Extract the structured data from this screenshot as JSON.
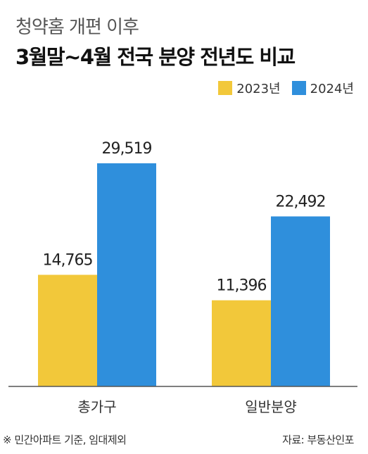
{
  "header": {
    "subtitle": "청약홈 개편 이후",
    "title": "3월말~4월 전국 분양 전년도 비교"
  },
  "colors": {
    "series_2023": "#f2c83a",
    "series_2024": "#2f8fdc",
    "axis": "#555555"
  },
  "chart_data": {
    "type": "bar",
    "categories": [
      "총가구",
      "일반분양"
    ],
    "series": [
      {
        "name": "2023년",
        "values": [
          14765,
          11396
        ],
        "labels": [
          "14,765",
          "11,396"
        ]
      },
      {
        "name": "2024년",
        "values": [
          29519,
          22492
        ],
        "labels": [
          "29,519",
          "22,492"
        ]
      }
    ],
    "ylim": [
      0,
      35000
    ],
    "legend": "top-right",
    "grid": false
  },
  "footer": {
    "note": "※ 민간아파트 기준, 임대제외",
    "source": "자료: 부동산인포"
  }
}
